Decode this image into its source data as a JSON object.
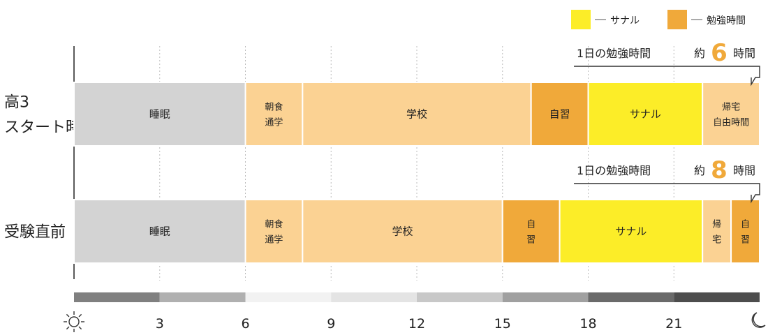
{
  "chart_data": {
    "type": "bar",
    "orientation": "horizontal-timeline",
    "x_range": [
      0,
      24
    ],
    "x_ticks": [
      3,
      6,
      9,
      12,
      15,
      18,
      21
    ],
    "legend": {
      "placement": "top-right",
      "items": [
        {
          "label": "サナル",
          "color": "#fced28"
        },
        {
          "label": "勉強時間",
          "color": "#f0a93a"
        }
      ]
    },
    "rows": [
      {
        "label_lines": [
          "高3",
          "スタート時"
        ],
        "summary": {
          "prefix": "1日の勉強時間",
          "approx": "約",
          "value": "6",
          "unit": "時間"
        },
        "segments": [
          {
            "start": 0,
            "end": 6,
            "label": "睡眠",
            "kind": "sleep"
          },
          {
            "start": 6,
            "end": 8,
            "label": "朝食\n通学",
            "kind": "life"
          },
          {
            "start": 8,
            "end": 16,
            "label": "学校",
            "kind": "life"
          },
          {
            "start": 16,
            "end": 18,
            "label": "自習",
            "kind": "study"
          },
          {
            "start": 18,
            "end": 22,
            "label": "サナル",
            "kind": "sanaru"
          },
          {
            "start": 22,
            "end": 24,
            "label": "帰宅\n自由時間",
            "kind": "life"
          }
        ]
      },
      {
        "label_lines": [
          "受験直前"
        ],
        "summary": {
          "prefix": "1日の勉強時間",
          "approx": "約",
          "value": "8",
          "unit": "時間"
        },
        "segments": [
          {
            "start": 0,
            "end": 6,
            "label": "睡眠",
            "kind": "sleep"
          },
          {
            "start": 6,
            "end": 8,
            "label": "朝食\n通学",
            "kind": "life"
          },
          {
            "start": 8,
            "end": 15,
            "label": "学校",
            "kind": "life"
          },
          {
            "start": 15,
            "end": 17,
            "label": "自\n習",
            "kind": "study"
          },
          {
            "start": 17,
            "end": 22,
            "label": "サナル",
            "kind": "sanaru"
          },
          {
            "start": 22,
            "end": 23,
            "label": "帰\n宅",
            "kind": "life"
          },
          {
            "start": 23,
            "end": 24,
            "label": "自\n習",
            "kind": "study"
          }
        ]
      }
    ],
    "daylight_bar": [
      {
        "start": 0,
        "end": 3,
        "color": "#808080"
      },
      {
        "start": 3,
        "end": 6,
        "color": "#b0b0b0"
      },
      {
        "start": 6,
        "end": 9,
        "color": "#f2f2f2"
      },
      {
        "start": 9,
        "end": 12,
        "color": "#e4e4e4"
      },
      {
        "start": 12,
        "end": 15,
        "color": "#c8c8c8"
      },
      {
        "start": 15,
        "end": 18,
        "color": "#a0a0a0"
      },
      {
        "start": 18,
        "end": 21,
        "color": "#6a6a6a"
      },
      {
        "start": 21,
        "end": 24,
        "color": "#4d4d4d"
      }
    ],
    "colors": {
      "sleep": "#d3d3d3",
      "life": "#fbd293",
      "study": "#f0a93a",
      "sanaru": "#fced28",
      "summary_number": "#f0a93a"
    },
    "start_icon": "sun-icon",
    "end_icon": "moon-icon"
  }
}
